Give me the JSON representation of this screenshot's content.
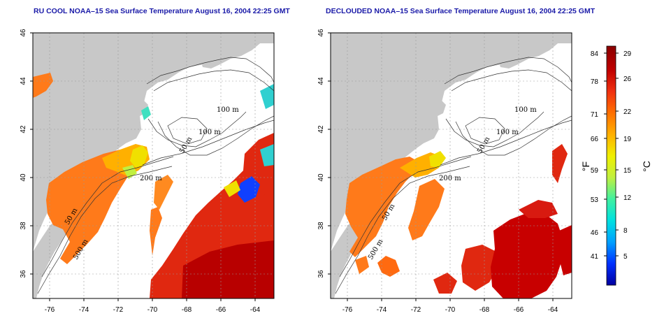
{
  "titles": {
    "left": "RU COOL NOAA–15 Sea Surface Temperature August 16, 2004 22:25 GMT",
    "right": "DECLOUDED NOAA–15 Sea Surface Temperature August 16, 2004 22:25 GMT"
  },
  "axes": {
    "x_ticks": [
      "-76",
      "-74",
      "-72",
      "-70",
      "-68",
      "-66",
      "-64"
    ],
    "y_ticks": [
      "46",
      "44",
      "42",
      "40",
      "38",
      "36"
    ]
  },
  "contours": {
    "labels": [
      "100 m",
      "100 m",
      "50 m",
      "200 m",
      "50 m",
      "500 m"
    ]
  },
  "colorbar": {
    "fahrenheit_ticks": [
      "84",
      "78",
      "71",
      "66",
      "59",
      "53",
      "46",
      "41"
    ],
    "celsius_ticks": [
      "29",
      "26",
      "22",
      "19",
      "15",
      "12",
      "8",
      "5"
    ],
    "fahrenheit_unit": "°F",
    "celsius_unit": "°C",
    "colors": [
      "#0000a0",
      "#0030ff",
      "#00a0ff",
      "#00e0e0",
      "#40f0a0",
      "#c0f040",
      "#f0f000",
      "#ffb000",
      "#ff7000",
      "#f03010",
      "#c00000",
      "#8a0000"
    ]
  },
  "colors": {
    "land": "#c8c8c8",
    "cloud": "#ffffff",
    "title": "#1a1aa8"
  }
}
